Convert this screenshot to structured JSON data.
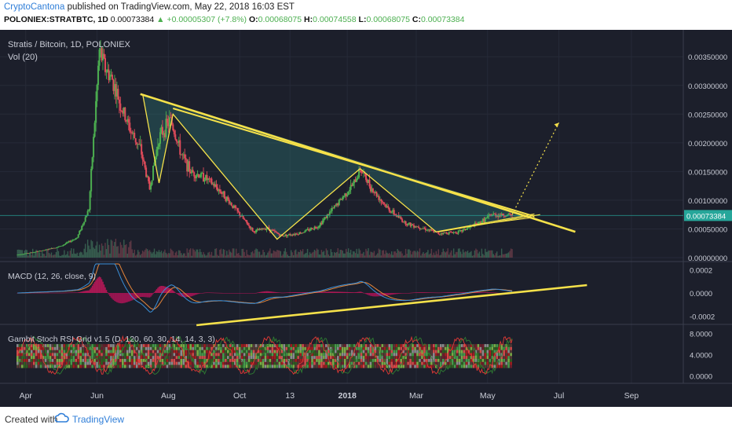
{
  "header": {
    "author": "CryptoCantona",
    "published": "published on TradingView.com, May 22, 2018 16:03 EST",
    "symbol": "POLONIEX:STRATBTC, 1D",
    "last": "0.00073384",
    "change": "▲ +0.00005307 (+7.8%)",
    "o_label": "O:",
    "o": "0.00068075",
    "h_label": "H:",
    "h": "0.00074558",
    "l_label": "L:",
    "l": "0.00068075",
    "c_label": "C:",
    "c": "0.00073384"
  },
  "footer": {
    "created": "Created with",
    "brand": "TradingView"
  },
  "colors": {
    "background": "#1c1f2b",
    "up": "#4caf50",
    "down": "#e04b5a",
    "trendline": "#f5e14a",
    "fill": "#2e7d7a",
    "macd": "#3a8fd8",
    "signal": "#e8873a",
    "last_price": "#26a69a"
  },
  "chart_data": [
    {
      "type": "candlestick",
      "title": "Stratis / Bitcoin, 1D, POLONIEX",
      "volume_label": "Vol (20)",
      "last_price_label": "0.00073384",
      "x_ticks": [
        "Apr",
        "Jun",
        "Aug",
        "Oct",
        "13",
        "2018",
        "Mar",
        "May",
        "Jul",
        "Sep"
      ],
      "y_ticks": [
        "0.00350000",
        "0.00300000",
        "0.00250000",
        "0.00200000",
        "0.00150000",
        "0.00100000",
        "0.00050000",
        "0.00000000"
      ],
      "ylim": [
        0,
        0.0039
      ],
      "close_series": {
        "name": "",
        "dates": [
          "2017-03-25",
          "2017-04-15",
          "2017-05-01",
          "2017-05-15",
          "2017-05-25",
          "2017-06-03",
          "2017-06-08",
          "2017-06-14",
          "2017-06-22",
          "2017-06-30",
          "2017-07-08",
          "2017-07-16",
          "2017-07-24",
          "2017-08-03",
          "2017-08-12",
          "2017-08-20",
          "2017-09-01",
          "2017-09-15",
          "2017-09-29",
          "2017-10-13",
          "2017-10-24",
          "2017-11-06",
          "2017-11-22",
          "2017-12-07",
          "2017-12-22",
          "2018-01-07",
          "2018-01-12",
          "2018-01-22",
          "2018-02-05",
          "2018-02-20",
          "2018-03-06",
          "2018-03-20",
          "2018-04-07",
          "2018-04-25",
          "2018-05-05",
          "2018-05-22"
        ],
        "values": [
          5e-05,
          0.00012,
          0.0002,
          0.00035,
          0.00085,
          0.0036,
          0.0033,
          0.0031,
          0.0026,
          0.0022,
          0.0019,
          0.0012,
          0.0021,
          0.0024,
          0.0018,
          0.0015,
          0.0014,
          0.00115,
          0.0008,
          0.00045,
          0.00052,
          0.00038,
          0.00043,
          0.00055,
          0.0009,
          0.0013,
          0.00155,
          0.0012,
          0.00085,
          0.0006,
          0.00052,
          0.00042,
          0.00045,
          0.00062,
          0.00075,
          0.00073384
        ]
      },
      "annotations": {
        "triangle_upper": [
          {
            "x": "2017-07-08",
            "y": 0.00285
          },
          {
            "x": "2018-06-15",
            "y": 0.00065
          }
        ],
        "triangle_lower": [
          {
            "x": "2018-03-20",
            "y": 0.00045
          },
          {
            "x": "2018-06-15",
            "y": 0.00075
          }
        ],
        "projection": [
          {
            "x": "2018-05-22",
            "y": 0.00075
          },
          {
            "x": "2018-07-01",
            "y": 0.00235
          }
        ]
      }
    },
    {
      "type": "line",
      "title": "MACD (12, 26, close, 9)",
      "y_ticks": [
        "0.0002",
        "0.0000",
        "-0.0002"
      ],
      "ylim": [
        -0.00025,
        0.00025
      ]
    },
    {
      "type": "heatmap",
      "title": "Gambit Stoch RSI Grid v1.5 (D, 120, 60, 30, 14, 14, 3, 3)",
      "y_ticks": [
        "8.0000",
        "4.0000",
        "0.0000"
      ],
      "ylim": [
        -1,
        9
      ]
    }
  ]
}
